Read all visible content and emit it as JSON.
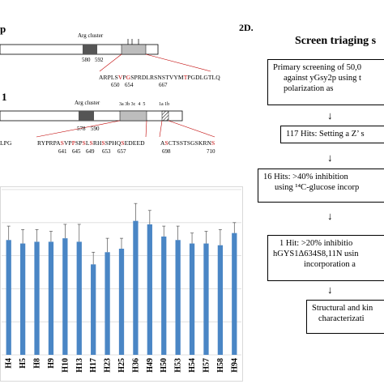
{
  "panel_c": {
    "label_top": "p",
    "label_mid": "1",
    "protein1": {
      "arg_cluster_label": "Arg cluster",
      "arg_positions": [
        "580",
        "592"
      ],
      "sequence_parts": [
        {
          "text": "ARPLS",
          "red": false
        },
        {
          "text": "V",
          "red": true
        },
        {
          "text": "P",
          "red": false
        },
        {
          "text": "G",
          "red": true
        },
        {
          "text": "S",
          "red": false
        },
        {
          "text": "PRDLRSNSTVYM",
          "red": false
        },
        {
          "text": "T",
          "red": true
        },
        {
          "text": "PGDLGTLQ",
          "red": false
        }
      ],
      "site_numbers": [
        "650",
        "654",
        "667"
      ]
    },
    "protein2": {
      "arg_cluster_label": "Arg cluster",
      "site_labels": "3a 3b 3c  4  5",
      "site_labels_2": "1a 1b",
      "arg_positions": [
        "578",
        "590"
      ],
      "left_fragment": "LPG",
      "sequence_parts": [
        {
          "text": "RYPRPA",
          "red": false
        },
        {
          "text": "S",
          "red": true
        },
        {
          "text": "VP",
          "red": false
        },
        {
          "text": "P",
          "red": true
        },
        {
          "text": "SP",
          "red": false
        },
        {
          "text": "S",
          "red": true
        },
        {
          "text": "L",
          "red": false
        },
        {
          "text": "S",
          "red": true
        },
        {
          "text": "RH",
          "red": false
        },
        {
          "text": "S",
          "red": true
        },
        {
          "text": "SPHQ",
          "red": false
        },
        {
          "text": "S",
          "red": true
        },
        {
          "text": "EDEED",
          "red": false
        }
      ],
      "site_numbers": [
        "641",
        "645",
        "649",
        "653",
        "657"
      ],
      "sequence2_parts": [
        {
          "text": "A",
          "red": false
        },
        {
          "text": "S",
          "red": true
        },
        {
          "text": "CTSSTSGSKRN",
          "red": false
        },
        {
          "text": "S",
          "red": true
        }
      ],
      "site_numbers_2": [
        "698",
        "710"
      ]
    }
  },
  "panel_d": {
    "label": "2D.",
    "title": "Screen triaging s",
    "boxes": [
      {
        "lines": [
          "Primary screening of 50,0",
          "against yGsy2p using t",
          "polarization as"
        ]
      },
      {
        "lines": [
          "117 Hits: Setting a Z’ s"
        ]
      },
      {
        "lines": [
          "16 Hits: >40% inhibition",
          "using ¹⁴C-glucose incorp"
        ]
      },
      {
        "lines": [
          "1 Hit: >20% inhibitio",
          "hGYS1Δ634S8,11N usin",
          "incorporation a"
        ]
      },
      {
        "lines": [
          "Structural and kin",
          "characterizati"
        ]
      }
    ],
    "arrow_glyph": "↓"
  },
  "chart_data": {
    "type": "bar",
    "title": "",
    "xlabel": "",
    "ylabel": "",
    "bar_color": "#4a86c5",
    "grid": true,
    "categories": [
      "H4",
      "H5",
      "H8",
      "H9",
      "H10",
      "H13",
      "H17",
      "H23",
      "H25",
      "H36",
      "H49",
      "H50",
      "H53",
      "H54",
      "H57",
      "H58",
      "H94"
    ],
    "values": [
      0.66,
      0.64,
      0.65,
      0.65,
      0.67,
      0.65,
      0.52,
      0.59,
      0.61,
      0.77,
      0.75,
      0.68,
      0.66,
      0.64,
      0.64,
      0.63,
      0.7
    ],
    "errors": [
      0.08,
      0.08,
      0.07,
      0.06,
      0.08,
      0.1,
      0.07,
      0.08,
      0.06,
      0.1,
      0.08,
      0.06,
      0.08,
      0.06,
      0.07,
      0.09,
      0.06
    ],
    "ylim": [
      0,
      0.95
    ]
  }
}
